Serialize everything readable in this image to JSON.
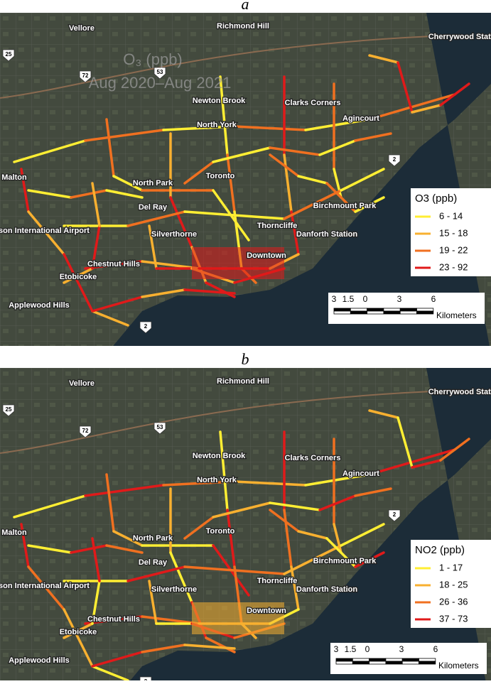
{
  "places": [
    "Vellore",
    "Richmond Hill",
    "Cherrywood Station",
    "Newton Brook",
    "Clarks Corners",
    "Agincourt",
    "North York",
    "Malton",
    "North Park",
    "Toronto",
    "Birchmount Park",
    "Del Ray",
    "Thorncliffe",
    "Lester B. Pearson International Airport",
    "Silverthorne",
    "Danforth Station",
    "Downtown",
    "Chestnut Hills",
    "Etobicoke",
    "Applewood Hills"
  ],
  "shields": [
    "25",
    "72",
    "53",
    "2",
    "2"
  ],
  "panels": [
    {
      "label": "a",
      "title": "O₃ (ppb)",
      "subtitle": "Aug 2020–Aug 2021",
      "legend": {
        "title": "O3 (ppb)",
        "items": [
          {
            "label": "6 - 14",
            "color": "#ffee33"
          },
          {
            "label": "15 - 18",
            "color": "#f8b030"
          },
          {
            "label": "19 - 22",
            "color": "#f07020"
          },
          {
            "label": "23 - 92",
            "color": "#e01a1a"
          }
        ]
      },
      "scale": {
        "ticks": [
          "3",
          "1.5",
          "0",
          "3",
          "6"
        ],
        "unit": "Kilometers"
      }
    },
    {
      "label": "b",
      "legend": {
        "title": "NO2 (ppb)",
        "items": [
          {
            "label": "1 - 17",
            "color": "#ffee33"
          },
          {
            "label": "18 - 25",
            "color": "#f8b030"
          },
          {
            "label": "26 - 36",
            "color": "#f07020"
          },
          {
            "label": "37 - 73",
            "color": "#e01a1a"
          }
        ]
      },
      "scale": {
        "ticks": [
          "3",
          "1.5",
          "0",
          "3",
          "6"
        ],
        "unit": "Kilometers"
      }
    }
  ]
}
